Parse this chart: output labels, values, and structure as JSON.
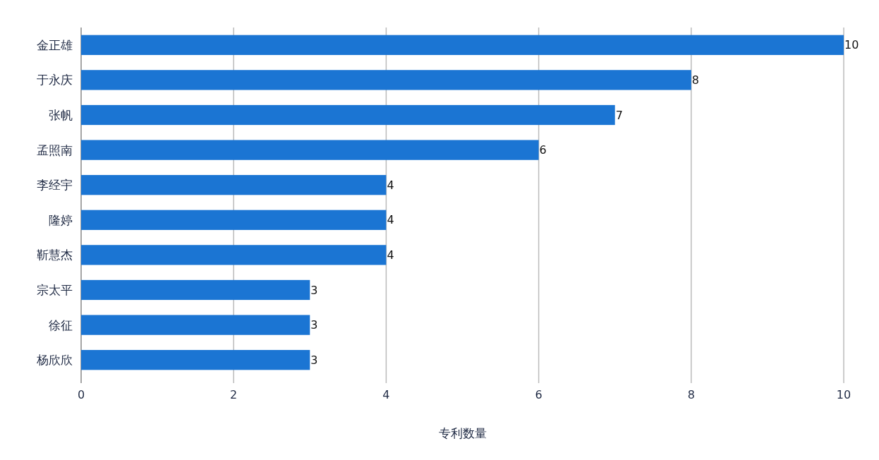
{
  "chart_data": {
    "type": "bar",
    "orientation": "horizontal",
    "xlabel": "专利数量",
    "categories": [
      "金正雄",
      "于永庆",
      "张帆",
      "孟照南",
      "李经宇",
      "隆婷",
      "靳慧杰",
      "宗太平",
      "徐征",
      "杨欣欣"
    ],
    "values": [
      10,
      8,
      7,
      6,
      4,
      4,
      4,
      3,
      3,
      3
    ],
    "color": "#1b75d3",
    "xlim": [
      0,
      10
    ],
    "xticks": [
      0,
      2,
      4,
      6,
      8,
      10
    ],
    "grid": "x",
    "data_labels": true
  }
}
